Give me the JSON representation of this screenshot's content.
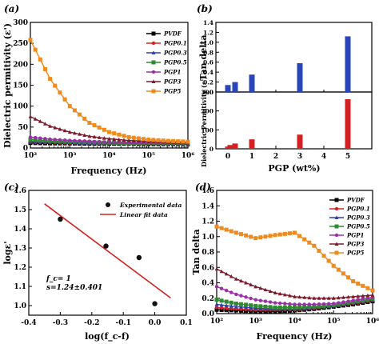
{
  "chart_data": [
    {
      "panel_label": "(a)",
      "type": "line",
      "xlabel": "Frequency (Hz)",
      "ylabel": "Dielectric permitivity (ε')",
      "x_scale": "log",
      "xlim": [
        100,
        1000000
      ],
      "ylim": [
        0,
        300
      ],
      "x_ticks": [
        "10²",
        "10³",
        "10⁴",
        "10⁵",
        "10⁶"
      ],
      "y_ticks": [
        "0",
        "50",
        "100",
        "150",
        "200",
        "250",
        "300"
      ],
      "x": [
        100,
        316,
        1000,
        3162,
        10000,
        31623,
        100000,
        316228,
        1000000
      ],
      "series": [
        {
          "name": "PVDF",
          "color": "#000000",
          "values": [
            12,
            11,
            11,
            10,
            10,
            10,
            9,
            9,
            9
          ]
        },
        {
          "name": "PGP0.1",
          "color": "#d62020",
          "values": [
            14,
            13,
            12,
            12,
            11,
            11,
            10,
            10,
            10
          ]
        },
        {
          "name": "PGP0.3",
          "color": "#2a3fb0",
          "values": [
            16,
            14,
            13,
            12,
            12,
            11,
            11,
            10,
            10
          ]
        },
        {
          "name": "PGP0.5",
          "color": "#2e8b2e",
          "values": [
            20,
            17,
            15,
            14,
            13,
            12,
            12,
            11,
            11
          ]
        },
        {
          "name": "PGP1",
          "color": "#9a2fa8",
          "values": [
            26,
            21,
            18,
            16,
            14,
            13,
            13,
            12,
            12
          ]
        },
        {
          "name": "PGP3",
          "color": "#7a1a2a",
          "values": [
            75,
            52,
            38,
            28,
            22,
            18,
            16,
            14,
            13
          ]
        },
        {
          "name": "PGP5",
          "color": "#f08a1c",
          "values": [
            258,
            165,
            100,
            60,
            38,
            26,
            20,
            17,
            15
          ]
        }
      ]
    },
    {
      "panel_label": "(b)",
      "type": "bar",
      "xlabel": "PGP (wt%)",
      "x_ticks": [
        "0",
        "1",
        "2",
        "3",
        "4",
        "5"
      ],
      "top": {
        "ylabel": "Tan delta",
        "ylim": [
          0,
          1.4
        ],
        "y_ticks": [
          "0.0",
          "0.2",
          "0.4",
          "0.6",
          "0.8",
          "1.0",
          "1.2",
          "1.4"
        ],
        "color": "#2a45b8",
        "x": [
          0,
          0.3,
          1,
          3,
          5
        ],
        "values": [
          0.14,
          0.2,
          0.35,
          0.58,
          1.12
        ]
      },
      "bottom": {
        "ylabel": "Dielectric Permitivity (ε')",
        "ylim": [
          0,
          300
        ],
        "y_ticks": [
          "0",
          "100",
          "200",
          "300"
        ],
        "color": "#d42020",
        "x": [
          0,
          0.1,
          0.3,
          1,
          3,
          5
        ],
        "values": [
          12,
          20,
          28,
          50,
          75,
          262
        ]
      }
    },
    {
      "panel_label": "(c)",
      "type": "scatter",
      "xlabel": "log(f_c-f)",
      "ylabel": "logε'",
      "xlim": [
        -0.4,
        0.1
      ],
      "ylim": [
        0.95,
        1.6
      ],
      "x_ticks": [
        "-0.4",
        "-0.3",
        "-0.2",
        "-0.1",
        "0.0",
        "0.1"
      ],
      "y_ticks": [
        "1.0",
        "1.1",
        "1.2",
        "1.3",
        "1.4",
        "1.5",
        "1.6"
      ],
      "legend": [
        "Experimental data",
        "Linear fit data"
      ],
      "points": [
        {
          "x": -0.3,
          "y": 1.45
        },
        {
          "x": -0.155,
          "y": 1.31
        },
        {
          "x": -0.05,
          "y": 1.25
        },
        {
          "x": 0.0,
          "y": 1.01
        }
      ],
      "fit": {
        "x": [
          -0.35,
          0.05
        ],
        "y": [
          1.53,
          1.04
        ],
        "color": "#d42020"
      },
      "annotation": [
        "f_c= 1",
        "s=1.24±0.401"
      ]
    },
    {
      "panel_label": "(d)",
      "type": "line",
      "xlabel": "Frequency (Hz)",
      "ylabel": "Tan delta",
      "x_scale": "log",
      "xlim": [
        100,
        1000000
      ],
      "ylim": [
        0,
        1.6
      ],
      "x_ticks": [
        "10²",
        "10³",
        "10⁴",
        "10⁵",
        "10⁶"
      ],
      "y_ticks": [
        "0.0",
        "0.2",
        "0.4",
        "0.6",
        "0.8",
        "1.0",
        "1.2",
        "1.4",
        "1.6"
      ],
      "x": [
        100,
        316,
        1000,
        3162,
        10000,
        31623,
        100000,
        316228,
        1000000
      ],
      "series": [
        {
          "name": "PVDF",
          "color": "#000000",
          "values": [
            0.05,
            0.04,
            0.03,
            0.03,
            0.04,
            0.06,
            0.09,
            0.12,
            0.16
          ]
        },
        {
          "name": "PGP0.1",
          "color": "#d62020",
          "values": [
            0.08,
            0.06,
            0.05,
            0.05,
            0.05,
            0.07,
            0.1,
            0.13,
            0.17
          ]
        },
        {
          "name": "PGP0.3",
          "color": "#2a3fb0",
          "values": [
            0.12,
            0.09,
            0.07,
            0.06,
            0.06,
            0.08,
            0.1,
            0.14,
            0.18
          ]
        },
        {
          "name": "PGP0.5",
          "color": "#2e8b2e",
          "values": [
            0.18,
            0.13,
            0.1,
            0.08,
            0.08,
            0.09,
            0.11,
            0.15,
            0.19
          ]
        },
        {
          "name": "PGP1",
          "color": "#9a2fa8",
          "values": [
            0.35,
            0.25,
            0.18,
            0.14,
            0.12,
            0.12,
            0.13,
            0.17,
            0.21
          ]
        },
        {
          "name": "PGP3",
          "color": "#7a1a2a",
          "values": [
            0.58,
            0.45,
            0.35,
            0.27,
            0.22,
            0.2,
            0.2,
            0.22,
            0.24
          ]
        },
        {
          "name": "PGP5",
          "color": "#f08a1c",
          "values": [
            1.13,
            1.05,
            0.98,
            1.02,
            1.05,
            0.88,
            0.62,
            0.42,
            0.3
          ]
        }
      ]
    }
  ]
}
